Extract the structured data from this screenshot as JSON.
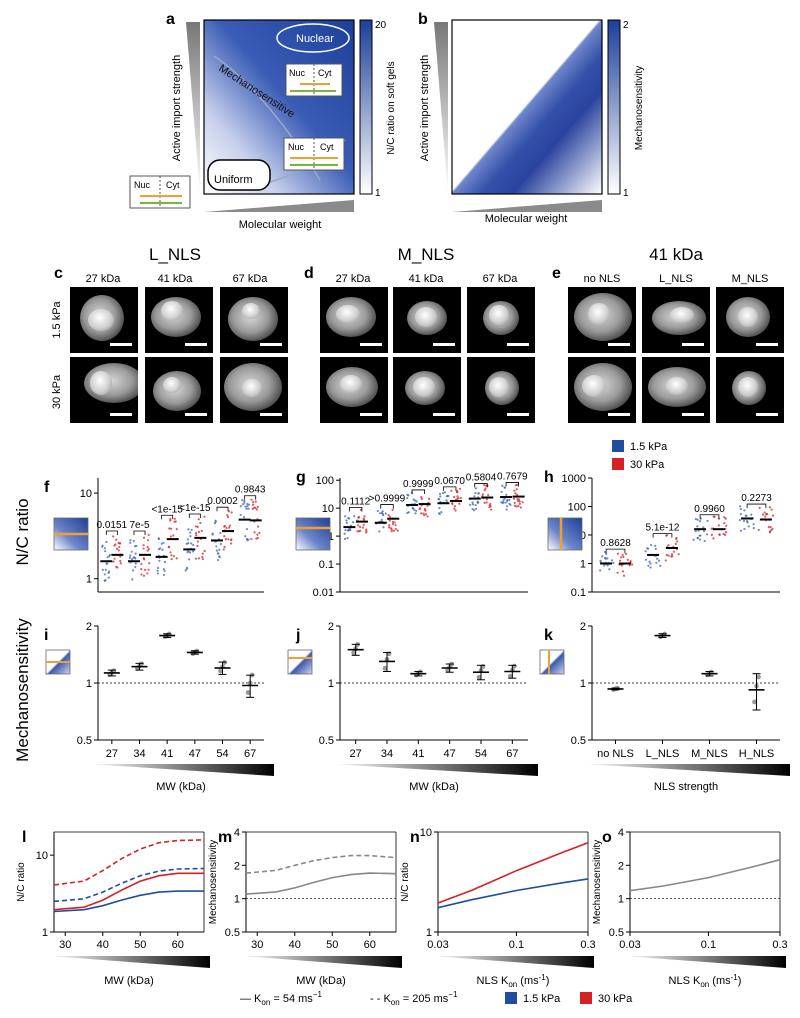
{
  "panels_top": {
    "a": {
      "letter": "a",
      "ylabel": "Active import strength",
      "xlabel": "Molecular weight",
      "cbar_label": "N/C ratio on soft gels",
      "cbar_max": "20",
      "cbar_min": "1",
      "regions": {
        "nuclear": "Nuclear",
        "mechanosensitive": "Mechanosensitive",
        "uniform": "Uniform"
      },
      "boxes": {
        "nuc": "Nuc",
        "cyt": "Cyt"
      }
    },
    "b": {
      "letter": "b",
      "ylabel": "Active import strength",
      "xlabel": "Molecular weight",
      "cbar_label": "Mechanosensitivity",
      "cbar_max": "2",
      "cbar_min": "1"
    }
  },
  "image_panels": {
    "c": {
      "letter": "c",
      "title": "L_NLS",
      "cols": [
        "27 kDa",
        "41 kDa",
        "67 kDa"
      ]
    },
    "d": {
      "letter": "d",
      "title": "M_NLS",
      "cols": [
        "27 kDa",
        "41 kDa",
        "67 kDa"
      ]
    },
    "e": {
      "letter": "e",
      "title": "41 kDa",
      "cols": [
        "no NLS",
        "L_NLS",
        "M_NLS"
      ]
    },
    "row_labels": [
      "1.5 kPa",
      "30 kPa"
    ]
  },
  "legend_top": {
    "soft": "1.5 kPa",
    "stiff": "30 kPa",
    "soft_color": "#1f4e9e",
    "stiff_color": "#d42026"
  },
  "row_labels": {
    "nc": "N/C ratio",
    "mech": "Mechanosensitivity"
  },
  "chart_data": [
    {
      "panel": "f",
      "type": "scatter",
      "ylabel": "N/C ratio",
      "yscale": "log",
      "ylim": [
        0.7,
        15
      ],
      "yticks": [
        "1",
        "10"
      ],
      "categories": [
        "27",
        "34",
        "41",
        "47",
        "54",
        "67"
      ],
      "medians_soft": [
        1.6,
        1.6,
        1.8,
        2.2,
        2.8,
        4.9
      ],
      "medians_stiff": [
        1.9,
        1.9,
        2.9,
        3.0,
        3.6,
        4.8
      ],
      "pvalues": [
        "0.0151",
        "7e-5",
        "<1e-15",
        "<1e-15",
        "0.0002",
        "0.9843"
      ]
    },
    {
      "panel": "g",
      "type": "scatter",
      "ylabel": "N/C ratio",
      "yscale": "log",
      "ylim": [
        0.01,
        120
      ],
      "yticks": [
        "100",
        "10",
        "1",
        "0.1",
        "0.01"
      ],
      "categories": [
        "27",
        "34",
        "41",
        "47",
        "54",
        "67"
      ],
      "medians_soft": [
        2.1,
        3.0,
        13.0,
        15.0,
        22.0,
        25.0
      ],
      "medians_stiff": [
        3.3,
        4.2,
        14.0,
        18.0,
        24.0,
        26.0
      ],
      "pvalues": [
        "0.1112",
        ">0.9999",
        "0.9999",
        "0.0670",
        "0.5804",
        "0.7679"
      ]
    },
    {
      "panel": "h",
      "type": "scatter",
      "ylabel": "N/C ratio",
      "yscale": "log",
      "ylim": [
        0.1,
        1000
      ],
      "yticks": [
        "1000",
        "100",
        "10",
        "1",
        "0.1"
      ],
      "categories": [
        "no NLS",
        "L_NLS",
        "M_NLS",
        "H_NLS"
      ],
      "medians_soft": [
        1.0,
        2.0,
        16.0,
        38.0
      ],
      "medians_stiff": [
        1.0,
        3.5,
        16.0,
        35.0
      ],
      "pvalues": [
        "0.8628",
        "5.1e-12",
        "0.9960",
        "0.2273"
      ]
    },
    {
      "panel": "i",
      "type": "scatter",
      "ylabel": "Mechanosensitivity",
      "yscale": "log",
      "ylim": [
        0.5,
        2
      ],
      "yticks": [
        "2",
        "1",
        "0.5"
      ],
      "xlabel": "MW (kDa)",
      "categories": [
        "27",
        "34",
        "41",
        "47",
        "54",
        "67"
      ],
      "means": [
        1.13,
        1.22,
        1.78,
        1.45,
        1.2,
        0.97
      ],
      "errors": [
        0.04,
        0.05,
        0.04,
        0.03,
        0.09,
        0.13
      ]
    },
    {
      "panel": "j",
      "type": "scatter",
      "ylabel": "Mechanosensitivity",
      "yscale": "log",
      "ylim": [
        0.5,
        2
      ],
      "yticks": [
        "2",
        "1",
        "0.5"
      ],
      "xlabel": "MW (kDa)",
      "categories": [
        "27",
        "34",
        "41",
        "47",
        "54",
        "67"
      ],
      "means": [
        1.5,
        1.3,
        1.12,
        1.2,
        1.14,
        1.15
      ],
      "errors": [
        0.1,
        0.15,
        0.03,
        0.06,
        0.1,
        0.09
      ]
    },
    {
      "panel": "k",
      "type": "scatter",
      "ylabel": "Mechanosensitivity",
      "yscale": "log",
      "ylim": [
        0.5,
        2
      ],
      "yticks": [
        "2",
        "1",
        "0.5"
      ],
      "xlabel": "NLS strength",
      "categories": [
        "no NLS",
        "L_NLS",
        "M_NLS",
        "H_NLS"
      ],
      "means": [
        0.93,
        1.78,
        1.12,
        0.92
      ],
      "errors": [
        0.01,
        0.04,
        0.03,
        0.2
      ]
    },
    {
      "panel": "l",
      "type": "line",
      "ylabel": "N/C ratio",
      "xlabel": "MW (kDa)",
      "yscale": "log",
      "ylim": [
        1,
        20
      ],
      "xlim": [
        27,
        67
      ],
      "xticks": [
        "30",
        "40",
        "50",
        "60"
      ],
      "yticks": [
        "10",
        "1"
      ],
      "x": [
        27,
        35,
        40,
        45,
        50,
        55,
        60,
        67
      ],
      "series": [
        {
          "name": "1.5 kPa K_on=54",
          "color": "#1f4e9e",
          "dash": false,
          "values": [
            1.85,
            1.95,
            2.2,
            2.6,
            3.0,
            3.3,
            3.4,
            3.4
          ]
        },
        {
          "name": "30 kPa K_on=54",
          "color": "#d42026",
          "dash": false,
          "values": [
            1.95,
            2.1,
            2.6,
            3.5,
            4.6,
            5.4,
            5.8,
            5.8
          ]
        },
        {
          "name": "1.5 kPa K_on=205",
          "color": "#1f4e9e",
          "dash": true,
          "values": [
            2.5,
            2.7,
            3.3,
            4.3,
            5.4,
            6.2,
            6.6,
            6.7
          ]
        },
        {
          "name": "30 kPa K_on=205",
          "color": "#d42026",
          "dash": true,
          "values": [
            4.1,
            4.6,
            6.3,
            9.0,
            12.0,
            14.5,
            15.5,
            15.8
          ]
        }
      ]
    },
    {
      "panel": "m",
      "type": "line",
      "ylabel": "Mechanosensitivity",
      "xlabel": "MW (kDa)",
      "yscale": "log",
      "ylim": [
        0.5,
        4
      ],
      "xlim": [
        27,
        67
      ],
      "xticks": [
        "30",
        "40",
        "50",
        "60"
      ],
      "yticks": [
        "4",
        "2",
        "1",
        "0.5"
      ],
      "x": [
        27,
        35,
        40,
        45,
        50,
        55,
        60,
        67
      ],
      "series": [
        {
          "name": "K_on=54",
          "color": "#888888",
          "dash": false,
          "values": [
            1.1,
            1.15,
            1.25,
            1.4,
            1.55,
            1.65,
            1.7,
            1.68
          ]
        },
        {
          "name": "K_on=205",
          "color": "#888888",
          "dash": true,
          "values": [
            1.7,
            1.8,
            2.0,
            2.2,
            2.35,
            2.45,
            2.45,
            2.35
          ]
        }
      ]
    },
    {
      "panel": "n",
      "type": "line",
      "ylabel": "N/C ratio",
      "xlabel": "NLS K_on (ms^-1)",
      "xscale": "log",
      "yscale": "log",
      "ylim": [
        1,
        10
      ],
      "xlim": [
        0.03,
        0.3
      ],
      "xticks": [
        "0.03",
        "0.1",
        "0.3"
      ],
      "yticks": [
        "10",
        "1"
      ],
      "x": [
        0.03,
        0.05,
        0.1,
        0.2,
        0.3
      ],
      "series": [
        {
          "name": "1.5 kPa",
          "color": "#1f4e9e",
          "dash": false,
          "values": [
            1.75,
            2.1,
            2.6,
            3.1,
            3.4
          ]
        },
        {
          "name": "30 kPa",
          "color": "#d42026",
          "dash": false,
          "values": [
            1.95,
            2.6,
            4.1,
            6.2,
            7.8
          ]
        }
      ]
    },
    {
      "panel": "o",
      "type": "line",
      "ylabel": "Mechanosensitivity",
      "xlabel": "NLS K_on (ms^-1)",
      "xscale": "log",
      "yscale": "log",
      "ylim": [
        0.5,
        4
      ],
      "xlim": [
        0.03,
        0.3
      ],
      "xticks": [
        "0.03",
        "0.1",
        "0.3"
      ],
      "yticks": [
        "4",
        "2",
        "1",
        "0.5"
      ],
      "x": [
        0.03,
        0.05,
        0.1,
        0.2,
        0.3
      ],
      "series": [
        {
          "name": "mechanosensitivity",
          "color": "#888888",
          "dash": false,
          "values": [
            1.18,
            1.3,
            1.55,
            1.95,
            2.25
          ]
        }
      ]
    }
  ],
  "bottom_legend": {
    "solid": "— K",
    "solid_sub": "on",
    "solid_val": " = 54 ms",
    "dashed": "- - K",
    "dashed_sub": "on",
    "dashed_val": " = 205 ms",
    "unit_sup": "−1",
    "soft": "1.5 kPa",
    "stiff": "30 kPa",
    "soft_color": "#1f4e9e",
    "stiff_color": "#d42026"
  },
  "axis_labels": {
    "mw": "MW (kDa)",
    "nls_strength": "NLS strength",
    "nls_kon": "NLS K",
    "kon_sub": "on",
    "kon_unit": " (ms",
    "kon_sup": "-1",
    "kon_close": ")"
  }
}
